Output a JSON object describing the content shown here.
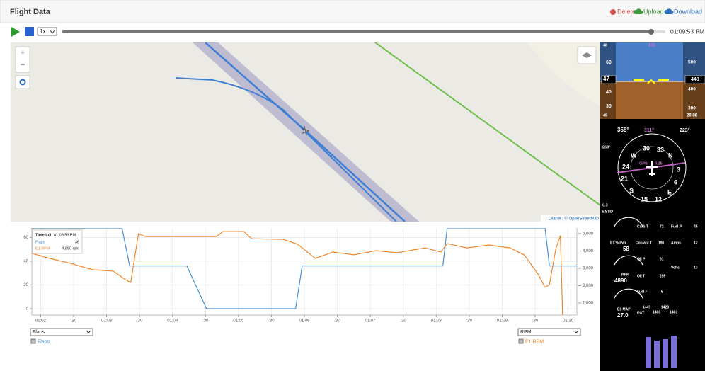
{
  "header": {
    "title": "Flight Data",
    "actions": [
      "Delete",
      "Upload",
      "Download"
    ]
  },
  "playback": {
    "speed": "1x",
    "time": "01:09:53 PM"
  },
  "map": {
    "attribution": "Leaflet | © OpenStreetMap"
  },
  "chart_data": {
    "type": "line",
    "xlim": [
      "01:01:52",
      "01:10:08"
    ],
    "xticks": [
      {
        "value": "01:02:00",
        "label": "01:02"
      },
      {
        "value": "01:02:30",
        "label": ":30"
      },
      {
        "value": "01:03:00",
        "label": "01:03"
      },
      {
        "value": "01:03:30",
        "label": ":30"
      },
      {
        "value": "01:04:00",
        "label": "01:04"
      },
      {
        "value": "01:04:30",
        "label": ":30"
      },
      {
        "value": "01:05:00",
        "label": "01:05"
      },
      {
        "value": "01:05:30",
        "label": ":30"
      },
      {
        "value": "01:06:00",
        "label": "01:06"
      },
      {
        "value": "01:06:30",
        "label": ":30"
      },
      {
        "value": "01:07:00",
        "label": "01:07"
      },
      {
        "value": "01:07:30",
        "label": ":30"
      },
      {
        "value": "01:08:00",
        "label": "01:08"
      },
      {
        "value": "01:08:30",
        "label": ":30"
      },
      {
        "value": "01:09:00",
        "label": "01:09"
      },
      {
        "value": "01:09:30",
        "label": ":30"
      },
      {
        "value": "01:10:00",
        "label": "01:10"
      }
    ],
    "ylim": [
      -5.4,
      68
    ],
    "yticks": [
      0,
      20,
      40,
      60
    ],
    "y2lim": [
      300,
      5330
    ],
    "y2ticks": [
      {
        "value": 1000,
        "label": "1,000"
      },
      {
        "value": 2000,
        "label": "2,000"
      },
      {
        "value": 3000,
        "label": "3,000"
      },
      {
        "value": 4000,
        "label": "4,000"
      },
      {
        "value": 5000,
        "label": "5,000"
      }
    ],
    "grid": true,
    "series": [
      {
        "name": "Flaps",
        "color": "#4a8fd0",
        "x": [
          "01:01:52",
          "01:03:14",
          "01:03:21",
          "01:04:13",
          "01:04:31",
          "01:05:52",
          "01:05:58",
          "01:08:06",
          "01:08:10",
          "01:09:39",
          "01:09:43",
          "01:10:08"
        ],
        "values": [
          68,
          68,
          36,
          36,
          0,
          0,
          36,
          36,
          68,
          68,
          36,
          36
        ]
      },
      {
        "name": "E1 RPM",
        "color": "#f0882a",
        "axis": "y2",
        "x": [
          "01:01:52",
          "01:02:11",
          "01:02:27",
          "01:02:47",
          "01:03:06",
          "01:03:18",
          "01:03:22",
          "01:03:29",
          "01:03:35",
          "01:04:04",
          "01:04:40",
          "01:04:46",
          "01:05:05",
          "01:05:12",
          "01:05:41",
          "01:05:54",
          "01:06:10",
          "01:06:26",
          "01:06:45",
          "01:07:05",
          "01:07:24",
          "01:07:50",
          "01:08:04",
          "01:08:10",
          "01:08:28",
          "01:08:48",
          "01:09:07",
          "01:09:20",
          "01:09:33",
          "01:09:39",
          "01:09:43",
          "01:09:49",
          "01:09:53",
          "01:09:55"
        ],
        "values": [
          3860,
          3530,
          3290,
          2920,
          2840,
          2310,
          2180,
          5000,
          4840,
          4840,
          4840,
          5120,
          5120,
          4710,
          4670,
          4390,
          3570,
          3940,
          3780,
          4020,
          3900,
          4180,
          3940,
          4430,
          4180,
          4350,
          4180,
          3780,
          2630,
          1900,
          2060,
          4180,
          4890,
          300
        ]
      }
    ],
    "tooltip": {
      "label": "Time Lcl",
      "time": "01:09:53 PM",
      "values": [
        36,
        4890
      ],
      "value_labels": [
        "36",
        "4,890 rpm"
      ]
    },
    "selects": [
      "Flaps",
      "RPM"
    ]
  },
  "panel": {
    "pfd": [
      "48",
      "311",
      "60",
      "500",
      "47",
      "440",
      "40",
      "400",
      "30",
      "300",
      "45",
      "29.88"
    ],
    "hsi": [
      "358°",
      "311°",
      "223°",
      "269°",
      "30",
      "33",
      "W",
      "N",
      "24",
      "3",
      "21",
      "6",
      "S",
      "E",
      "15",
      "12",
      "GPS",
      "0.25",
      "0.3",
      "ESSD"
    ],
    "engine": [
      "Carb T",
      "72",
      "Fuel P",
      "45",
      "E1 % Pwr",
      "58",
      "Coolant T",
      "196",
      "Amps",
      "12",
      "Oil P",
      "61",
      "Volts",
      "13",
      "RPM",
      "4890",
      "Oil T",
      "259",
      "Fuel F",
      "5",
      "E1 MAP",
      "27.0",
      "EGT",
      "1445",
      "1423",
      "1480",
      "1483"
    ]
  }
}
